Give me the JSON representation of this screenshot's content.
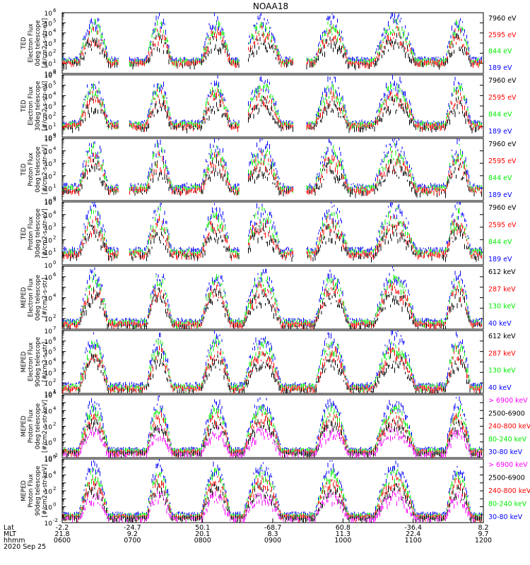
{
  "title": "NOAA18",
  "colors": {
    "black": "#000000",
    "red": "#ff0000",
    "green": "#00ee00",
    "blue": "#0000ff",
    "magenta": "#ff00ff"
  },
  "chart_data": {
    "type": "line",
    "title": "NOAA18",
    "date": "2020 Sep 25",
    "time_ticks": [
      "0600",
      "0700",
      "0800",
      "0900",
      "1000",
      "1100",
      "1200"
    ],
    "orbit_rows": {
      "labels": [
        "Lat",
        "MLT",
        "hhmm"
      ],
      "lat": [
        "-2.2",
        "-24.7",
        "50.1",
        "-68.7",
        "60.8",
        "-36.4",
        "8.2"
      ],
      "mlt": [
        "21.8",
        "9.2",
        "20.1",
        "8.3",
        "11.3",
        "22.4",
        "9.7"
      ]
    },
    "panels": [
      {
        "ylabel": [
          "TED",
          "Electron Flux",
          "0deg telescope",
          "[#/cm2-s-str-eV]"
        ],
        "ylim": [
          1,
          1000000
        ],
        "yticks": [
          {
            "e": "0"
          },
          {
            "e": "1"
          },
          {
            "e": "2"
          },
          {
            "e": "3"
          },
          {
            "e": "4"
          },
          {
            "e": "5"
          },
          {
            "e": "6"
          }
        ],
        "legend": [
          {
            "name": "7960 eV",
            "color": "#000000"
          },
          {
            "name": "2595 eV",
            "color": "#ff0000"
          },
          {
            "name": "844 eV",
            "color": "#00ee00"
          },
          {
            "name": "189 eV",
            "color": "#0000ff"
          }
        ]
      },
      {
        "ylabel": [
          "TED",
          "Electron Flux",
          "30deg telescope",
          "[#/cm2-s-str-eV]"
        ],
        "ylim": [
          1,
          1000000
        ],
        "yticks": [
          {
            "e": "0"
          },
          {
            "e": "1"
          },
          {
            "e": "2"
          },
          {
            "e": "3"
          },
          {
            "e": "4"
          },
          {
            "e": "5"
          },
          {
            "e": "6"
          }
        ],
        "legend": [
          {
            "name": "7960 eV",
            "color": "#000000"
          },
          {
            "name": "2595 eV",
            "color": "#ff0000"
          },
          {
            "name": "844 eV",
            "color": "#00ee00"
          },
          {
            "name": "189 eV",
            "color": "#0000ff"
          }
        ]
      },
      {
        "ylabel": [
          "TED",
          "Proton Flux",
          "0deg telescope",
          "[#/cm2-s-str-eV]"
        ],
        "ylim": [
          1,
          100000
        ],
        "yticks": [
          {
            "e": "0"
          },
          {
            "e": "1"
          },
          {
            "e": "2"
          },
          {
            "e": "3"
          },
          {
            "e": "4"
          },
          {
            "e": "5"
          }
        ],
        "legend": [
          {
            "name": "7960 eV",
            "color": "#000000"
          },
          {
            "name": "2595 eV",
            "color": "#ff0000"
          },
          {
            "name": "844 eV",
            "color": "#00ee00"
          },
          {
            "name": "189 eV",
            "color": "#0000ff"
          }
        ]
      },
      {
        "ylabel": [
          "TED",
          "Proton Flux",
          "30deg telescope",
          "[#/cm2-s-str-eV]"
        ],
        "ylim": [
          1,
          100000
        ],
        "yticks": [
          {
            "e": "0"
          },
          {
            "e": "1"
          },
          {
            "e": "2"
          },
          {
            "e": "3"
          },
          {
            "e": "4"
          },
          {
            "e": "5"
          }
        ],
        "legend": [
          {
            "name": "7960 eV",
            "color": "#000000"
          },
          {
            "name": "2595 eV",
            "color": "#ff0000"
          },
          {
            "name": "844 eV",
            "color": "#00ee00"
          },
          {
            "name": "189 eV",
            "color": "#0000ff"
          }
        ]
      },
      {
        "ylabel": [
          "MEPED",
          "Electron Flux",
          "0deg telescope",
          "[#/cm2-s-str]"
        ],
        "ylim": [
          10,
          10000000
        ],
        "yticks": [
          {
            "e": "2"
          },
          {
            "e": "4"
          },
          {
            "e": "6"
          }
        ],
        "legend": [
          {
            "name": "612 keV",
            "color": "#000000"
          },
          {
            "name": "287 keV",
            "color": "#ff0000"
          },
          {
            "name": "130 keV",
            "color": "#00ee00"
          },
          {
            "name": "40 keV",
            "color": "#0000ff"
          }
        ]
      },
      {
        "ylabel": [
          "MEPED",
          "Electron Flux",
          "90deg telescope",
          "[#/cm2-s-str]"
        ],
        "ylim": [
          10,
          10000000
        ],
        "yticks": [
          {
            "e": "1"
          },
          {
            "e": "2"
          },
          {
            "e": "3"
          },
          {
            "e": "4"
          },
          {
            "e": "5"
          },
          {
            "e": "6"
          },
          {
            "e": "7"
          }
        ],
        "legend": [
          {
            "name": "612 keV",
            "color": "#000000"
          },
          {
            "name": "287 keV",
            "color": "#ff0000"
          },
          {
            "name": "130 keV",
            "color": "#00ee00"
          },
          {
            "name": "40 keV",
            "color": "#0000ff"
          }
        ]
      },
      {
        "ylabel": [
          "MEPED",
          "Proton Flux",
          "0deg telescope",
          "[#/cm2-s-str-keV]"
        ],
        "ylim": [
          0.01,
          1000000
        ],
        "yticks": [
          {
            "e": "-2"
          },
          {
            "e": "0"
          },
          {
            "e": "2"
          },
          {
            "e": "4"
          },
          {
            "e": "6"
          }
        ],
        "legend": [
          {
            "name": "> 6900 keV",
            "color": "#ff00ff"
          },
          {
            "name": "2500-6900",
            "color": "#000000"
          },
          {
            "name": "240-800 keV",
            "color": "#ff0000"
          },
          {
            "name": "80-240 keV",
            "color": "#00ee00"
          },
          {
            "name": "30-80 keV",
            "color": "#0000ff"
          }
        ]
      },
      {
        "ylabel": [
          "MEPED",
          "Proton Flux",
          "90deg telescope",
          "[#/cm2-s-str-keV]"
        ],
        "ylim": [
          0.01,
          1000000
        ],
        "yticks": [
          {
            "e": "-2"
          },
          {
            "e": "0"
          },
          {
            "e": "2"
          },
          {
            "e": "4"
          },
          {
            "e": "6"
          }
        ],
        "legend": [
          {
            "name": "> 6900 keV",
            "color": "#ff00ff"
          },
          {
            "name": "2500-6900",
            "color": "#000000"
          },
          {
            "name": "240-800 keV",
            "color": "#ff0000"
          },
          {
            "name": "80-240 keV",
            "color": "#00ee00"
          },
          {
            "name": "30-80 keV",
            "color": "#0000ff"
          }
        ]
      }
    ]
  }
}
